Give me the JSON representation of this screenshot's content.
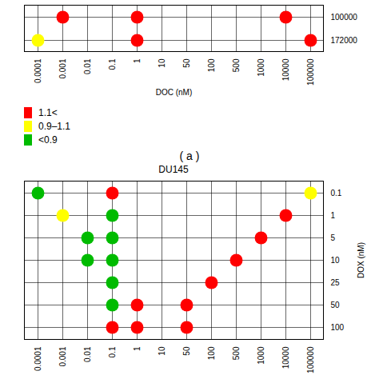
{
  "chart_data": [
    {
      "type": "scatter",
      "xlabel": "DOC (nM)",
      "categories": [
        "0.0001",
        "0.001",
        "0.01",
        "0.1",
        "1",
        "10",
        "50",
        "100",
        "500",
        "1000",
        "10000",
        "100000"
      ],
      "y_categories": [
        "172000",
        "100000"
      ],
      "grid": true,
      "series": [
        {
          "name": "1.1<",
          "color": "#ff0000",
          "x": [
            "0.001",
            "1",
            "10000",
            "1",
            "100000"
          ],
          "y": [
            "100000",
            "100000",
            "100000",
            "172000",
            "172000"
          ]
        },
        {
          "name": "0.9–1.1",
          "color": "#ffff00",
          "x": [
            "0.0001"
          ],
          "y": [
            "172000"
          ]
        },
        {
          "name": "<0.9",
          "color": "#00bb00",
          "x": [],
          "y": []
        }
      ]
    },
    {
      "type": "scatter",
      "title": "DU145",
      "ylabel": "DOX (nM)",
      "annotations": [
        "( a )"
      ],
      "categories": [
        "0.0001",
        "0.001",
        "0.01",
        "0.1",
        "1",
        "10",
        "50",
        "100",
        "500",
        "1000",
        "10000",
        "100000"
      ],
      "y_categories": [
        "100",
        "50",
        "25",
        "10",
        "5",
        "1",
        "0.1"
      ],
      "grid": true,
      "series": [
        {
          "name": "1.1<",
          "color": "#ff0000",
          "x": [
            "0.1",
            "10000",
            "1000",
            "500",
            "100",
            "1",
            "50",
            "0.1",
            "1",
            "50"
          ],
          "y": [
            "0.1",
            "1",
            "5",
            "10",
            "25",
            "50",
            "50",
            "100",
            "100",
            "100"
          ]
        },
        {
          "name": "0.9–1.1",
          "color": "#ffff00",
          "x": [
            "100000",
            "0.001"
          ],
          "y": [
            "0.1",
            "1"
          ]
        },
        {
          "name": "<0.9",
          "color": "#00bb00",
          "x": [
            "0.0001",
            "0.1",
            "0.01",
            "0.1",
            "0.01",
            "0.1",
            "0.1",
            "0.1"
          ],
          "y": [
            "0.1",
            "1",
            "5",
            "5",
            "10",
            "10",
            "25",
            "50"
          ]
        }
      ]
    }
  ]
}
